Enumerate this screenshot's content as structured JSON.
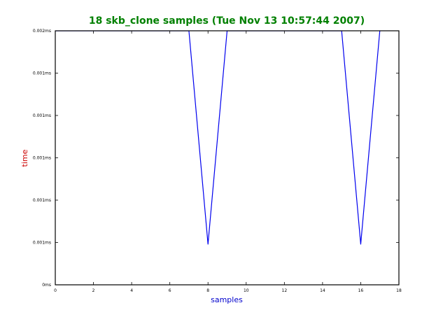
{
  "colors": {
    "title": "#008000",
    "xlabel": "#0000cc",
    "ylabel": "#cc0000",
    "series": "#0000ee",
    "axes": "#000000",
    "background": "#ffffff"
  },
  "chart_data": {
    "type": "line",
    "title": "18 skb_clone samples (Tue Nov 13 10:57:44 2007)",
    "xlabel": "samples",
    "ylabel": "time",
    "xlim": [
      0,
      18
    ],
    "ylim": [
      0,
      0.002
    ],
    "x_ticks": [
      0,
      2,
      4,
      6,
      8,
      10,
      12,
      14,
      16,
      18
    ],
    "x_tick_labels": [
      "0",
      "2",
      "4",
      "6",
      "8",
      "10",
      "12",
      "14",
      "16",
      "18"
    ],
    "y_ticks": [
      0,
      0.0003333,
      0.0006667,
      0.001,
      0.0013333,
      0.0016667,
      0.002
    ],
    "y_tick_labels": [
      "0ms",
      "0.001ms",
      "0.001ms",
      "0.001ms",
      "0.001ms",
      "0.001ms",
      "0.002ms"
    ],
    "grid": false,
    "series": [
      {
        "x": [
          0,
          1,
          2,
          3,
          4,
          5,
          6,
          7,
          8,
          9,
          10,
          11,
          12,
          13,
          14,
          15,
          16,
          17
        ],
        "values": [
          0.002,
          0.002,
          0.002,
          0.002,
          0.002,
          0.002,
          0.002,
          0.002,
          0.00032,
          0.002,
          0.002,
          0.002,
          0.002,
          0.002,
          0.002,
          0.002,
          0.00032,
          0.002
        ]
      }
    ]
  }
}
